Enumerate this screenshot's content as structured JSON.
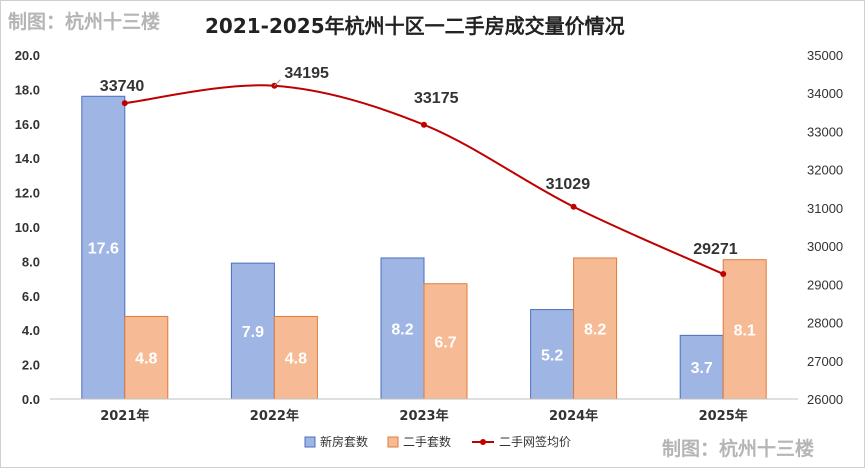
{
  "header": {
    "watermark_top": "制图：杭州十三楼",
    "watermark_bottom": "制图：杭州十三楼"
  },
  "colors": {
    "new_house": "#9fb5e3",
    "new_house_edge": "#4a6fc1",
    "second_hand": "#f6bb95",
    "second_hand_edge": "#e07a3c",
    "price_line": "#c00000"
  },
  "chart_data": {
    "type": "bar",
    "title": "2021-2025年杭州十区一二手房成交量价情况",
    "categories": [
      "2021年",
      "2022年",
      "2023年",
      "2024年",
      "2025年"
    ],
    "series": [
      {
        "name": "新房套数",
        "type": "bar",
        "axis": "left",
        "values": [
          17.6,
          7.9,
          8.2,
          5.2,
          3.7
        ],
        "labels": [
          "17.6",
          "7.9",
          "8.2",
          "5.2",
          "3.7"
        ]
      },
      {
        "name": "二手套数",
        "type": "bar",
        "axis": "left",
        "values": [
          4.8,
          4.8,
          6.7,
          8.2,
          8.1
        ],
        "labels": [
          "4.8",
          "4.8",
          "6.7",
          "8.2",
          "8.1"
        ]
      },
      {
        "name": "二手网签均价",
        "type": "line",
        "axis": "right",
        "values": [
          33740,
          34195,
          33175,
          31029,
          29271
        ],
        "labels": [
          "33740",
          "34195",
          "33175",
          "31029",
          "29271"
        ]
      }
    ],
    "y_left": {
      "min": 0,
      "max": 20,
      "step": 2,
      "tick_labels": [
        "0.0",
        "2.0",
        "4.0",
        "6.0",
        "8.0",
        "10.0",
        "12.0",
        "14.0",
        "16.0",
        "18.0",
        "20.0"
      ]
    },
    "y_right": {
      "min": 26000,
      "max": 35000,
      "step": 1000,
      "tick_labels": [
        "26000",
        "27000",
        "28000",
        "29000",
        "30000",
        "31000",
        "32000",
        "33000",
        "34000",
        "35000"
      ]
    },
    "legend": {
      "position": "bottom",
      "items": [
        "新房套数",
        "二手套数",
        "二手网签均价"
      ]
    },
    "grid": false
  }
}
